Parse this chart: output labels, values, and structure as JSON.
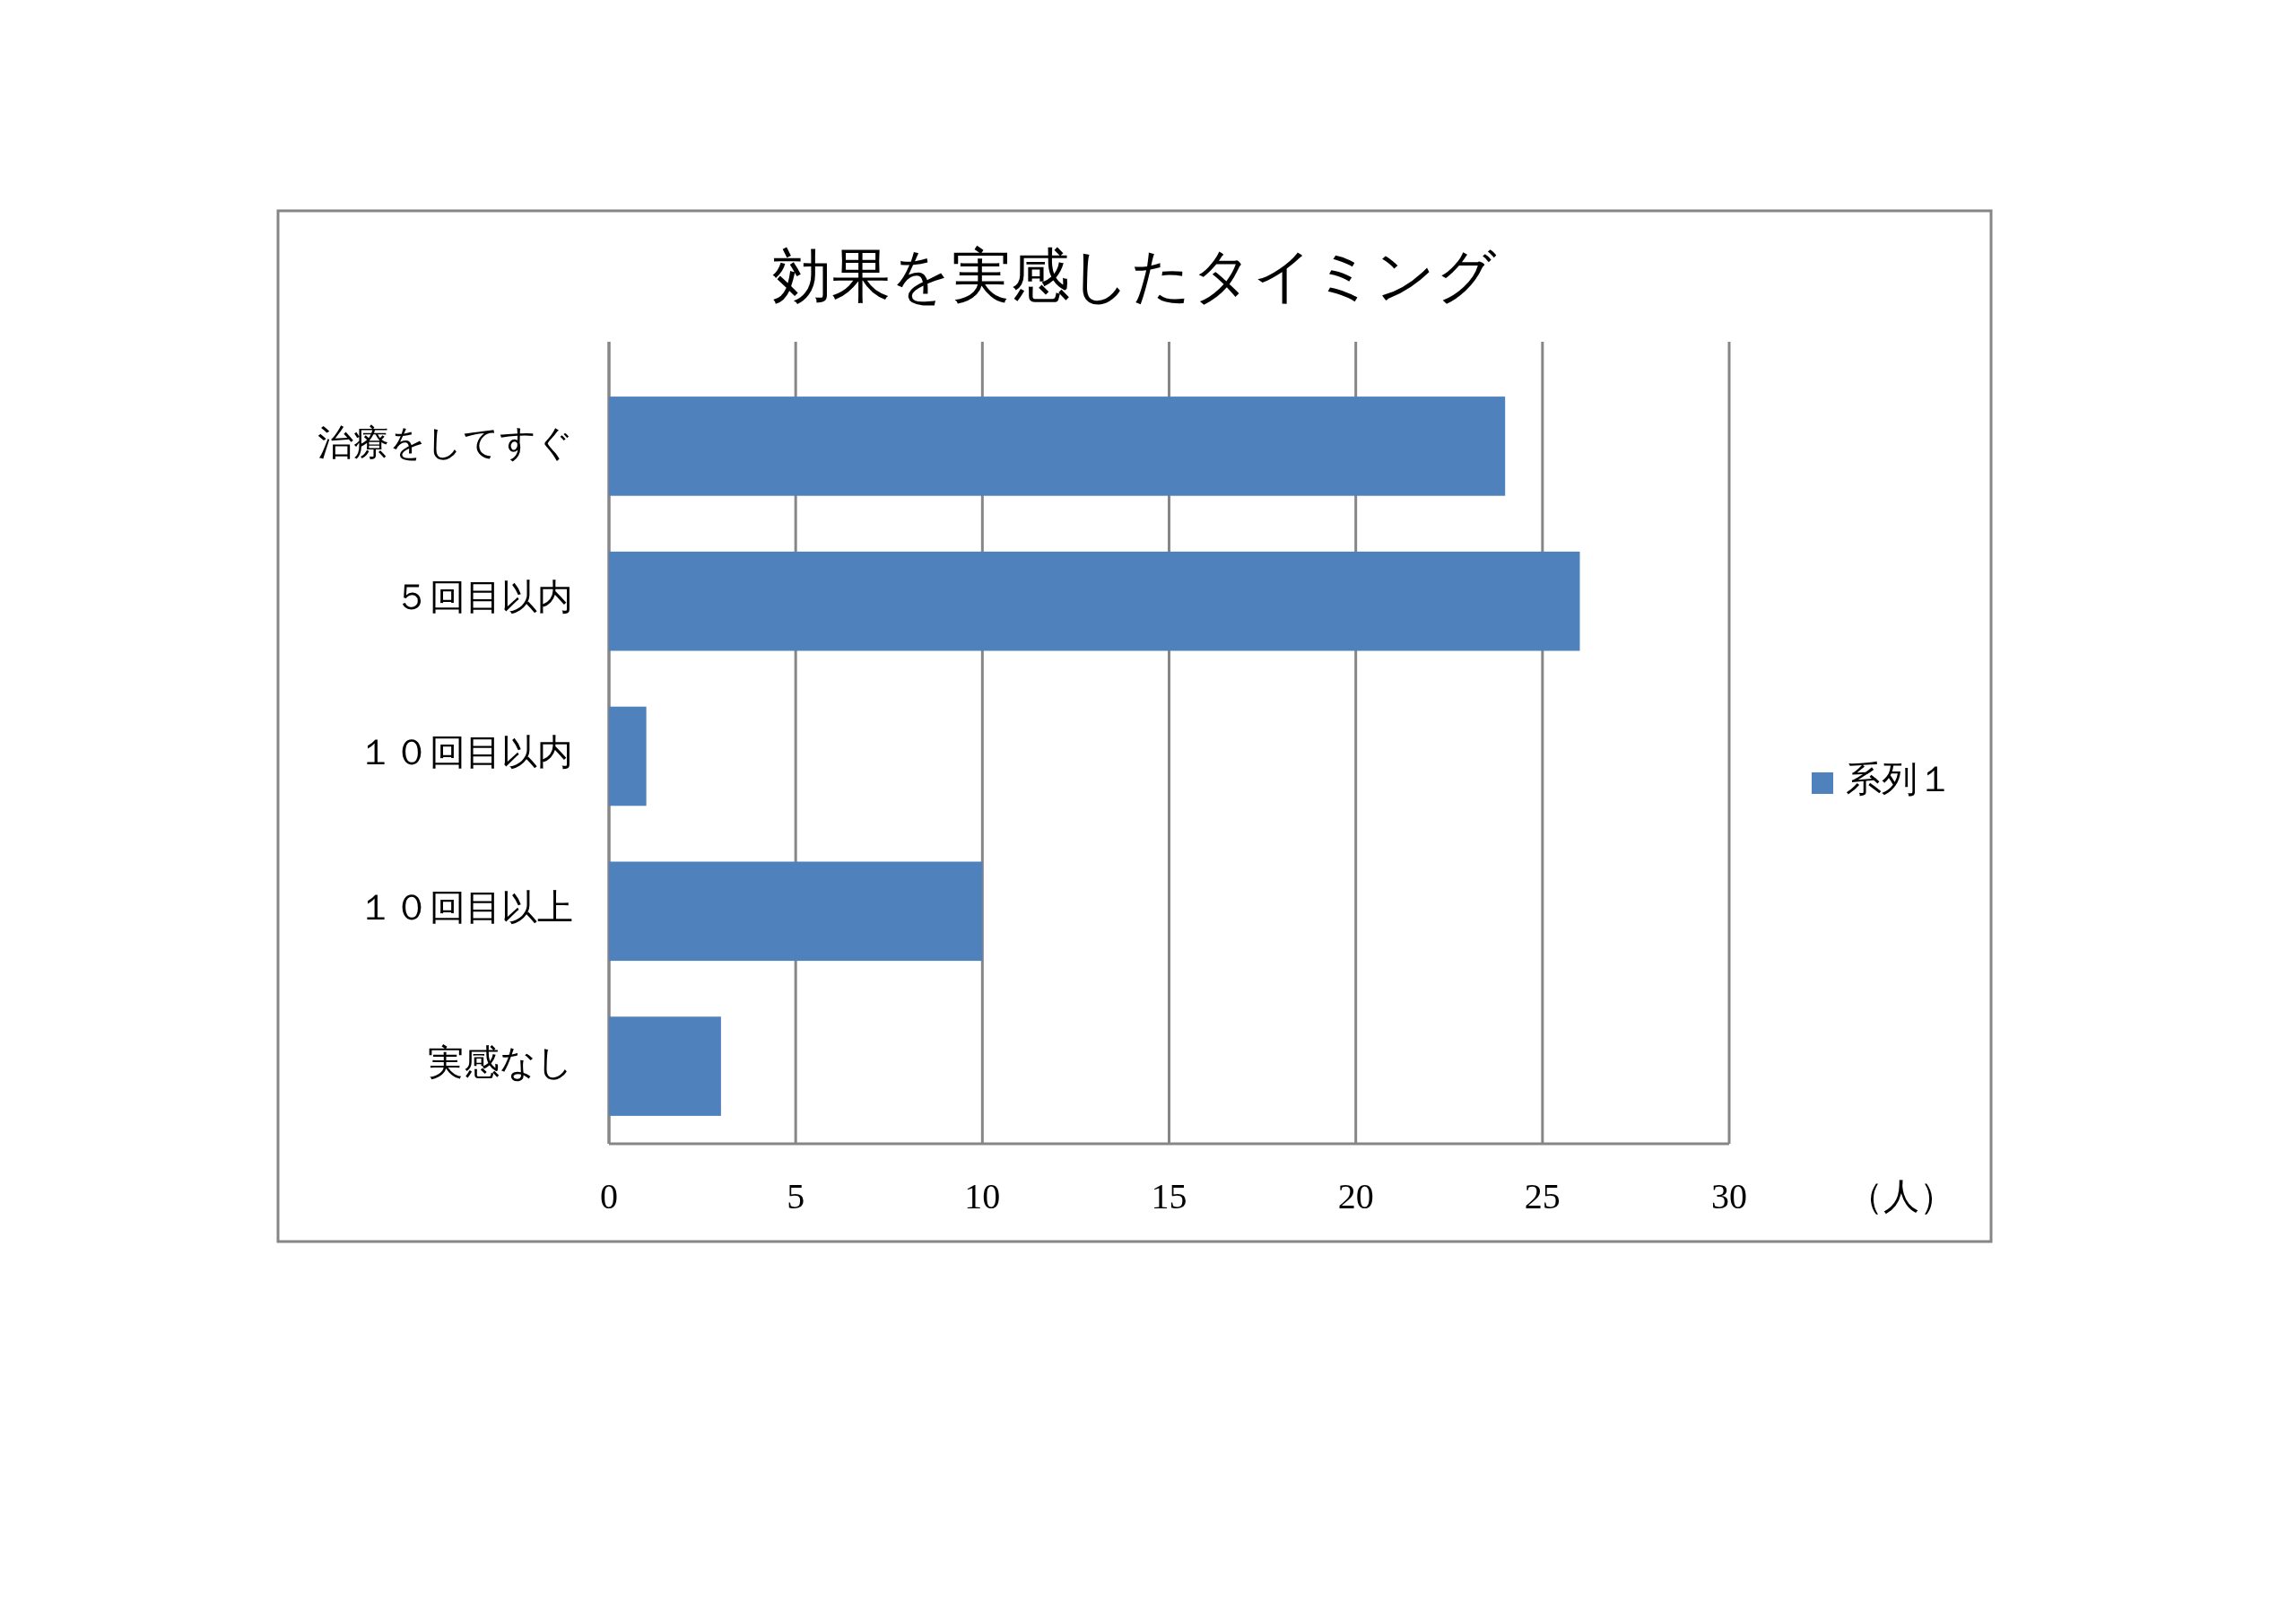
{
  "chart_data": {
    "type": "bar",
    "orientation": "horizontal",
    "title": "効果を実感したタイミング",
    "xlabel": "（人）",
    "categories": [
      "治療をしてすぐ",
      "５回目以内",
      "１０回目以内",
      "１０回目以上",
      "実感なし"
    ],
    "series": [
      {
        "name": "系列１",
        "color": "#4f81bd",
        "values": [
          24,
          26,
          1,
          10,
          3
        ]
      }
    ],
    "xlim": [
      0,
      30
    ],
    "xticks": [
      0,
      5,
      10,
      15,
      20,
      25,
      30
    ],
    "grid": "x",
    "legend": "right"
  }
}
